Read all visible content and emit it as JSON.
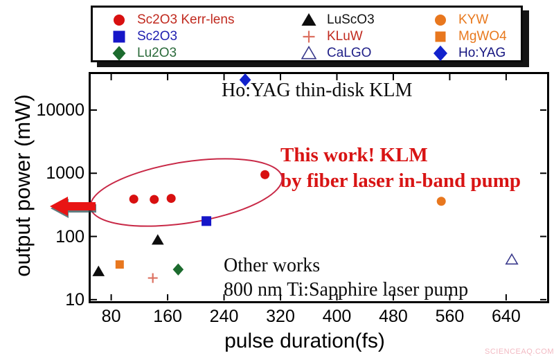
{
  "watermark": "SCIENCEAQ.COM",
  "colors": {
    "annotation_red": "#D81414",
    "arrow_red": "#E81414",
    "ellipse_red": "#C82846",
    "watermark_pink": "#F2B9C2",
    "axis_black": "#000000"
  },
  "annotations": {
    "ho_yag": "Ho:YAG thin-disk KLM",
    "this_work_line1": "This work! KLM",
    "this_work_line2": "by fiber laser in-band pump",
    "other_works_line1": "Other works",
    "other_works_line2": "800 nm Ti:Sapphire laser pump"
  },
  "chart_data": {
    "type": "scatter",
    "title": "",
    "xlabel": "pulse duration(fs)",
    "ylabel": "output power (mW)",
    "x_scale": "linear",
    "y_scale": "log",
    "x_range": [
      48,
      700
    ],
    "y_range": [
      9,
      40000
    ],
    "x_ticks": [
      80,
      160,
      240,
      320,
      400,
      480,
      560,
      640
    ],
    "y_ticks": [
      10,
      100,
      1000,
      10000
    ],
    "grid": false,
    "legend_position": "top-outside",
    "series": [
      {
        "name": "Sc2O3 Kerr-lens",
        "marker": "circle",
        "color": "#D81010",
        "label_color": "#C0291E",
        "size": 13,
        "points": [
          [
            112,
            390
          ],
          [
            141,
            385
          ],
          [
            165,
            400
          ],
          [
            298,
            950
          ]
        ]
      },
      {
        "name": "Sc2O3",
        "marker": "square",
        "color": "#1616C8",
        "label_color": "#2020B0",
        "size": 14,
        "points": [
          [
            215,
            175
          ]
        ]
      },
      {
        "name": "Lu2O3",
        "marker": "diamond",
        "color": "#1C6B2E",
        "label_color": "#2A6A3A",
        "size": 14,
        "points": [
          [
            175,
            30
          ]
        ]
      },
      {
        "name": "LuScO3",
        "marker": "triangle",
        "color": "#0D0D0D",
        "label_color": "#111111",
        "size": 15,
        "points": [
          [
            62,
            28
          ],
          [
            146,
            88
          ]
        ]
      },
      {
        "name": "KLuW",
        "marker": "plus",
        "color": "#DC7060",
        "label_color": "#C0291E",
        "size": 14,
        "points": [
          [
            139,
            22
          ]
        ]
      },
      {
        "name": "CaLGO",
        "marker": "triangle-open",
        "color": "#3A3A8C",
        "label_color": "#202088",
        "size": 14,
        "points": [
          [
            648,
            43
          ]
        ]
      },
      {
        "name": "KYW",
        "marker": "circle",
        "color": "#E8771E",
        "label_color": "#E8791E",
        "size": 13,
        "points": [
          [
            548,
            360
          ]
        ]
      },
      {
        "name": "MgWO4",
        "marker": "square",
        "color": "#E8771E",
        "label_color": "#E8791E",
        "size": 12,
        "points": [
          [
            92,
            36
          ]
        ]
      },
      {
        "name": "Ho:YAG",
        "marker": "diamond",
        "color": "#1122CC",
        "label_color": "#151580",
        "size": 15,
        "points": [
          [
            270,
            30000
          ]
        ]
      }
    ]
  }
}
